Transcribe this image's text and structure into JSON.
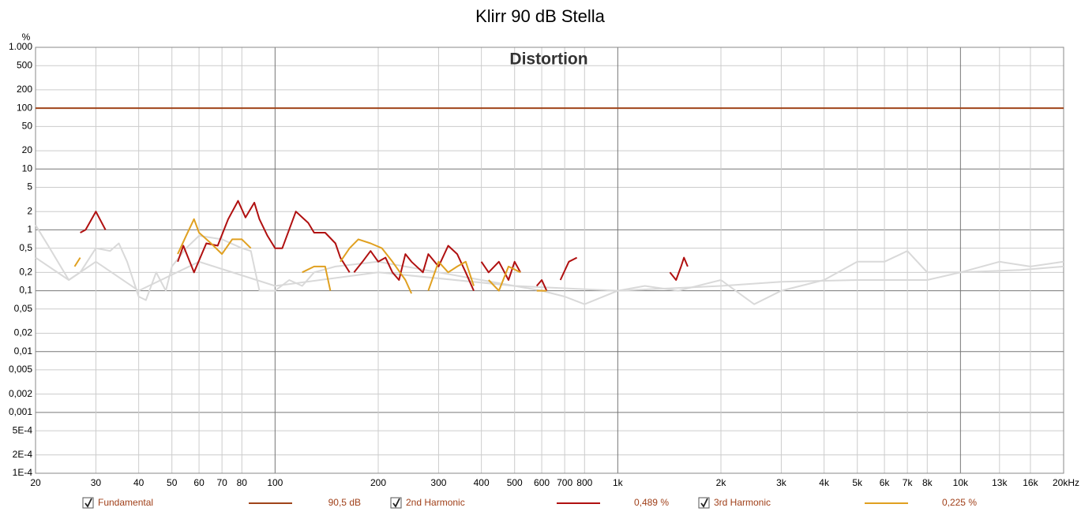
{
  "chart_data": {
    "type": "line",
    "title": "Klirr 90 dB Stella",
    "subtitle": "Distortion",
    "y_unit": "%",
    "xscale": "log",
    "yscale": "log",
    "grid": true,
    "xlim": [
      20,
      20000
    ],
    "ylim": [
      0.0001,
      1000
    ],
    "xticks": [
      20,
      30,
      40,
      50,
      60,
      70,
      80,
      100,
      200,
      300,
      400,
      500,
      600,
      700,
      800,
      {
        "value": 1000,
        "label": "1k"
      },
      {
        "value": 2000,
        "label": "2k"
      },
      {
        "value": 3000,
        "label": "3k"
      },
      {
        "value": 4000,
        "label": "4k"
      },
      {
        "value": 5000,
        "label": "5k"
      },
      {
        "value": 6000,
        "label": "6k"
      },
      {
        "value": 7000,
        "label": "7k"
      },
      {
        "value": 8000,
        "label": "8k"
      },
      {
        "value": 10000,
        "label": "10k"
      },
      {
        "value": 13000,
        "label": "13k"
      },
      {
        "value": 16000,
        "label": "16k"
      },
      {
        "value": 20000,
        "label": "20kHz"
      }
    ],
    "yticks": [
      {
        "value": 1000,
        "label": "1.000"
      },
      500,
      200,
      100,
      50,
      20,
      10,
      5,
      2,
      1,
      {
        "value": 0.5,
        "label": "0,5"
      },
      {
        "value": 0.2,
        "label": "0,2"
      },
      {
        "value": 0.1,
        "label": "0,1"
      },
      {
        "value": 0.05,
        "label": "0,05"
      },
      {
        "value": 0.02,
        "label": "0,02"
      },
      {
        "value": 0.01,
        "label": "0,01"
      },
      {
        "value": 0.005,
        "label": "0,005"
      },
      {
        "value": 0.002,
        "label": "0,002"
      },
      {
        "value": 0.001,
        "label": "0,001"
      },
      {
        "value": 0.0005,
        "label": "5E-4"
      },
      {
        "value": 0.0002,
        "label": "2E-4"
      },
      {
        "value": 0.0001,
        "label": "1E-4"
      }
    ],
    "series": [
      {
        "color": "#d9d9d9",
        "x": [
          20,
          22,
          25,
          27,
          30,
          33,
          35,
          37,
          40,
          42,
          45,
          48,
          50,
          55,
          60,
          70,
          80,
          85,
          90,
          100,
          110,
          120,
          130,
          150,
          200,
          300,
          400,
          500,
          600,
          700,
          800,
          1000,
          1200,
          1500,
          2000,
          2500,
          3000,
          4000,
          5000,
          6000,
          7000,
          8000,
          10000,
          13000,
          16000,
          20000
        ],
        "values": [
          1.2,
          0.5,
          0.15,
          0.2,
          0.5,
          0.45,
          0.6,
          0.3,
          0.08,
          0.07,
          0.2,
          0.1,
          0.25,
          0.5,
          0.8,
          0.7,
          0.5,
          0.45,
          0.1,
          0.1,
          0.15,
          0.12,
          0.2,
          0.25,
          0.3,
          0.2,
          0.15,
          0.12,
          0.1,
          0.08,
          0.06,
          0.1,
          0.12,
          0.1,
          0.15,
          0.06,
          0.1,
          0.15,
          0.3,
          0.3,
          0.45,
          0.2,
          0.2,
          0.3,
          0.25,
          0.3
        ]
      },
      {
        "color": "#d9d9d9",
        "x": [
          20,
          25,
          30,
          40,
          60,
          100,
          200,
          500,
          1000,
          2000,
          3000,
          5000,
          8000,
          10000,
          15000,
          20000
        ],
        "values": [
          0.35,
          0.15,
          0.3,
          0.1,
          0.3,
          0.12,
          0.2,
          0.12,
          0.1,
          0.12,
          0.14,
          0.15,
          0.15,
          0.2,
          0.22,
          0.25
        ]
      },
      {
        "name": "Fundamental",
        "legend_value": "90,5 dB",
        "color": "#a0441a",
        "x": [
          20,
          20000
        ],
        "values": [
          100,
          100
        ]
      },
      {
        "name": "2nd Harmonic",
        "legend_value": "0,489 %",
        "color": "#b01010",
        "x": [
          27,
          28,
          30,
          32,
          null,
          52,
          54,
          58,
          63,
          68,
          73,
          78,
          82,
          87,
          90,
          95,
          100,
          105,
          115,
          125,
          130,
          140,
          150,
          155,
          165,
          null,
          170,
          180,
          190,
          200,
          210,
          220,
          230,
          240,
          250,
          270,
          280,
          300,
          320,
          340,
          360,
          380,
          null,
          400,
          420,
          450,
          480,
          500,
          520,
          null,
          580,
          600,
          620,
          null,
          680,
          720,
          760,
          null,
          1420,
          1480,
          1530,
          1560,
          1600
        ],
        "values": [
          0.9,
          1.0,
          2.0,
          1.0,
          null,
          0.3,
          0.55,
          0.2,
          0.6,
          0.55,
          1.5,
          3.0,
          1.6,
          2.8,
          1.5,
          0.8,
          0.5,
          0.5,
          2.0,
          1.3,
          0.9,
          0.9,
          0.6,
          0.35,
          0.2,
          null,
          0.2,
          0.3,
          0.45,
          0.3,
          0.35,
          0.2,
          0.15,
          0.4,
          0.3,
          0.2,
          0.4,
          0.25,
          0.55,
          0.4,
          0.2,
          0.1,
          null,
          0.3,
          0.2,
          0.3,
          0.15,
          0.3,
          0.2,
          null,
          0.12,
          0.15,
          0.1,
          null,
          0.15,
          0.3,
          0.35,
          null,
          0.2,
          0.15,
          0.25,
          0.35,
          0.25
        ]
      },
      {
        "name": "3rd Harmonic",
        "legend_value": "0,225 %",
        "color": "#e0a020",
        "x": [
          26,
          27,
          null,
          52,
          55,
          58,
          60,
          65,
          70,
          75,
          80,
          85,
          null,
          120,
          130,
          140,
          145,
          null,
          155,
          165,
          175,
          190,
          205,
          220,
          240,
          250,
          null,
          280,
          300,
          320,
          340,
          360,
          380,
          null,
          420,
          450,
          480,
          520,
          null,
          580,
          620
        ],
        "values": [
          0.25,
          0.35,
          null,
          0.4,
          0.8,
          1.5,
          0.9,
          0.6,
          0.4,
          0.7,
          0.7,
          0.5,
          null,
          0.2,
          0.25,
          0.25,
          0.1,
          null,
          0.3,
          0.5,
          0.7,
          0.6,
          0.5,
          0.3,
          0.15,
          0.09,
          null,
          0.1,
          0.3,
          0.2,
          0.25,
          0.3,
          0.12,
          null,
          0.15,
          0.1,
          0.25,
          0.2,
          null,
          0.1,
          0.1
        ]
      }
    ]
  }
}
